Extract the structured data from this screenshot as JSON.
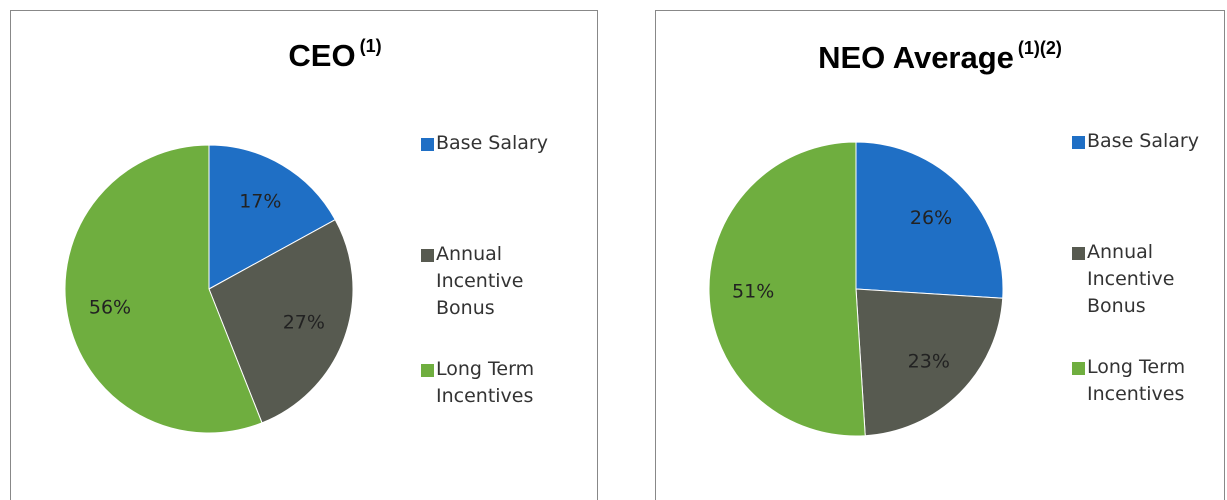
{
  "chart_data": [
    {
      "type": "pie",
      "title": "CEO",
      "title_sup": "(1)",
      "categories": [
        "Base Salary",
        "Annual Incentive Bonus",
        "Long Term Incentives"
      ],
      "values": [
        17,
        27,
        56
      ],
      "value_labels": [
        "17%",
        "27%",
        "56%"
      ],
      "colors": [
        "#1f6fc5",
        "#575a50",
        "#6fae3f"
      ],
      "legend": "right"
    },
    {
      "type": "pie",
      "title": "NEO Average",
      "title_sup": "(1)(2)",
      "categories": [
        "Base Salary",
        "Annual Incentive Bonus",
        "Long Term Incentives"
      ],
      "values": [
        26,
        23,
        51
      ],
      "value_labels": [
        "26%",
        "23%",
        "51%"
      ],
      "colors": [
        "#1f6fc5",
        "#575a50",
        "#6fae3f"
      ],
      "legend": "right"
    }
  ]
}
